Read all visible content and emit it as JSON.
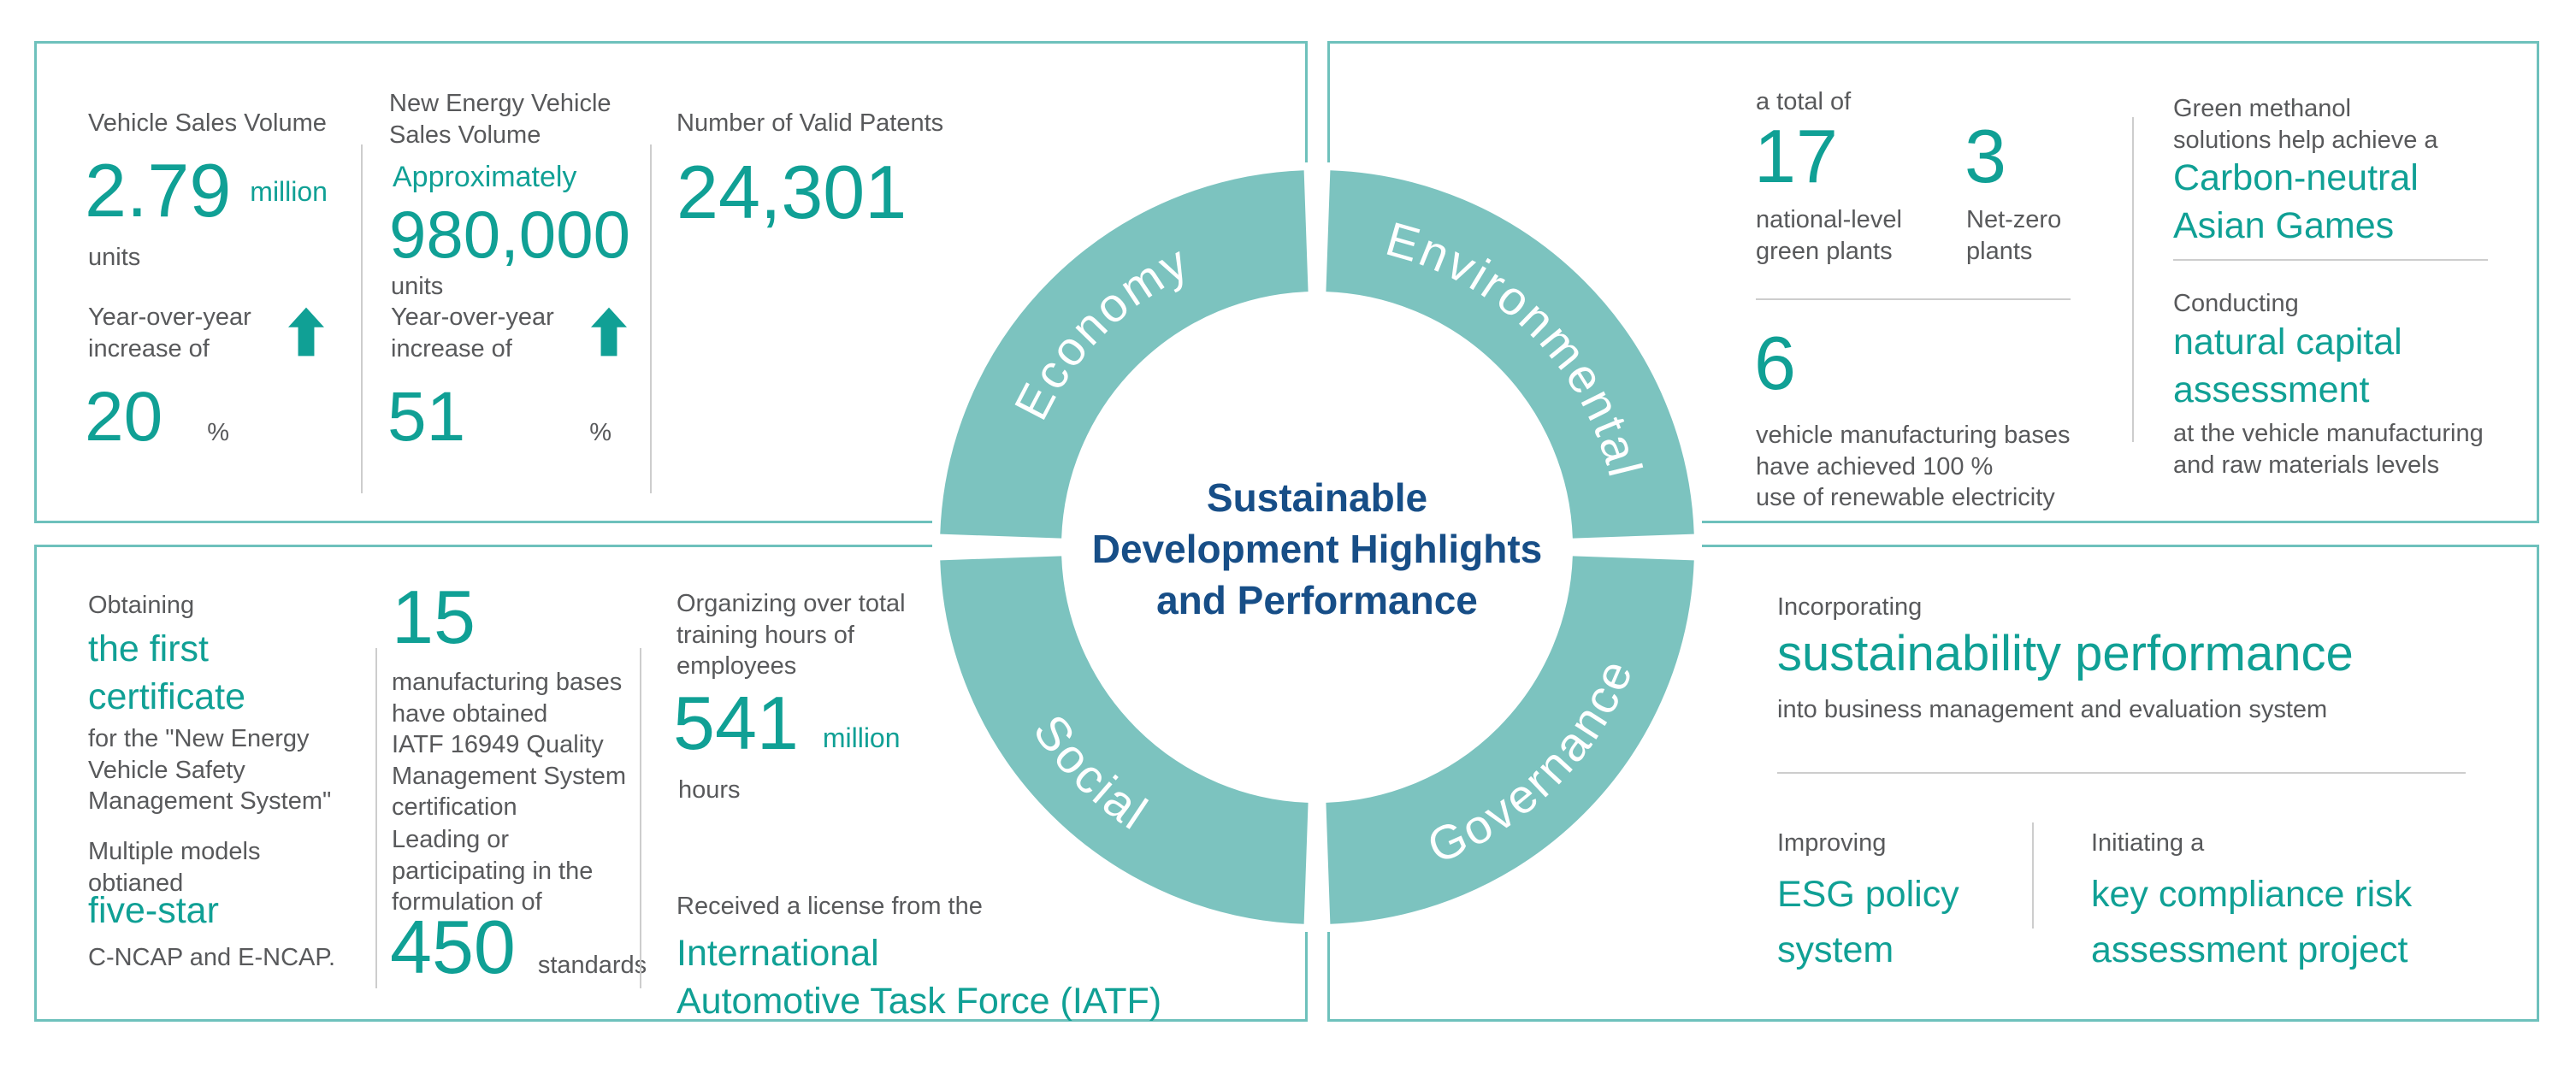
{
  "colors": {
    "accent": "#10a095",
    "ring": "#7cc3bf",
    "box_border": "#6ec1bc",
    "text_grey": "#58595b",
    "title_blue": "#174e87",
    "divider_grey": "#cdcdcd"
  },
  "center_title": [
    "Sustainable",
    "Development Highlights",
    "and Performance"
  ],
  "ring_labels": {
    "economy": "Economy",
    "environmental": "Environmental",
    "social": "Social",
    "governance": "Governance"
  },
  "economy": {
    "vehicle_sales": {
      "label": "Vehicle Sales Volume",
      "value": "2.79",
      "scale_word": "million",
      "unit": "units",
      "yoy_label": [
        "Year-over-year",
        "increase of"
      ],
      "yoy_value": "20",
      "yoy_unit": "%"
    },
    "nev_sales": {
      "label": [
        "New Energy Vehicle",
        "Sales Volume"
      ],
      "qualifier": "Approximately",
      "value": "980,000",
      "unit": "units",
      "yoy_label": [
        "Year-over-year",
        "increase of"
      ],
      "yoy_value": "51",
      "yoy_unit": "%"
    },
    "patents": {
      "label": "Number of Valid Patents",
      "value": "24,301"
    }
  },
  "environmental": {
    "intro": "a total of",
    "green_plants": {
      "value": "17",
      "label": [
        "national-level",
        "green plants"
      ]
    },
    "net_zero": {
      "value": "3",
      "label": [
        "Net-zero",
        "plants"
      ]
    },
    "renewable": {
      "value": "6",
      "label": [
        "vehicle manufacturing bases",
        "have achieved 100 %",
        "use of renewable electricity"
      ]
    },
    "methanol": {
      "intro": [
        "Green methanol",
        "solutions help achieve a"
      ],
      "highlight": [
        "Carbon-neutral",
        "Asian Games"
      ]
    },
    "natural_capital": {
      "intro": "Conducting",
      "highlight": [
        "natural capital",
        "assessment"
      ],
      "note": [
        "at the vehicle manufacturing",
        "and raw materials levels"
      ]
    }
  },
  "social": {
    "certificate": {
      "intro": "Obtaining",
      "highlight": [
        "the first",
        "certificate"
      ],
      "note": [
        "for the \"New Energy",
        "Vehicle Safety",
        "Management System\""
      ]
    },
    "five_star": {
      "intro": [
        "Multiple models",
        "obtianed"
      ],
      "highlight": "five-star",
      "note": "C-NCAP and  E-NCAP."
    },
    "iatf_bases": {
      "value": "15",
      "label": [
        "manufacturing bases",
        "have obtained",
        "IATF 16949 Quality",
        "Management System",
        "certification"
      ]
    },
    "standards": {
      "intro": [
        "Leading or",
        "participating in the",
        "formulation of"
      ],
      "value": "450",
      "unit": "standards"
    },
    "training": {
      "label": [
        "Organizing over total",
        "training hours of",
        "employees"
      ],
      "value": "541",
      "scale_word": "million",
      "unit": "hours"
    },
    "license": {
      "intro": "Received a license from the",
      "highlight": [
        "International",
        "Automotive Task Force (IATF)"
      ]
    }
  },
  "governance": {
    "sustainability": {
      "intro": "Incorporating",
      "highlight": "sustainability performance",
      "note": "into business management and evaluation system"
    },
    "esg": {
      "intro": "Improving",
      "highlight": [
        "ESG policy",
        "system"
      ]
    },
    "compliance": {
      "intro": "Initiating  a",
      "highlight": [
        "key compliance risk",
        "assessment project"
      ]
    }
  }
}
